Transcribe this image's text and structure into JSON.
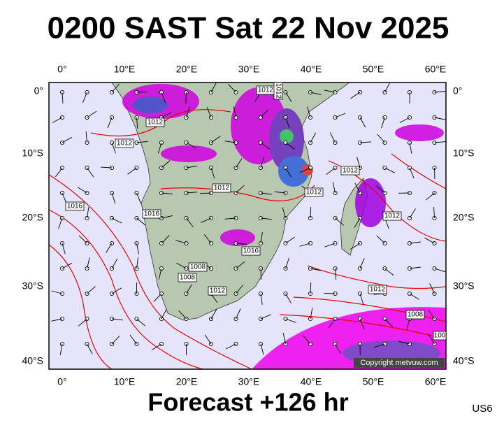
{
  "header": {
    "title": "0200 SAST Sat 22 Nov 2025"
  },
  "axes": {
    "longitude_labels": [
      "0°",
      "10°E",
      "20°E",
      "30°E",
      "40°E",
      "50°E",
      "60°E"
    ],
    "latitude_labels": [
      "0°",
      "10°S",
      "20°S",
      "30°S",
      "40°S"
    ]
  },
  "isobars": {
    "labels": [
      "1012",
      "1012",
      "1012",
      "1016",
      "1016",
      "1012",
      "1012",
      "1016",
      "1008",
      "1008",
      "1012",
      "1012",
      "1012",
      "1012",
      "1012",
      "1008",
      "100"
    ]
  },
  "credit": "Copyright metvuw.com",
  "footer": {
    "forecast": "Forecast +126 hr",
    "code": "US6"
  }
}
